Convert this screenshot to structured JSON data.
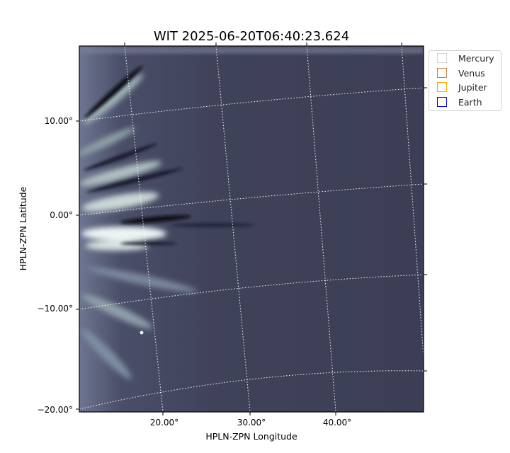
{
  "chart_data": {
    "type": "image",
    "title": "WIT 2025-06-20T06:40:23.624",
    "xlabel": "HPLN-ZPN Longitude",
    "ylabel": "HPLN-ZPN Latitude",
    "xticks": [
      "20.00°",
      "30.00°",
      "40.00°"
    ],
    "yticks": [
      "10.00°",
      "0.00°",
      "−10.00°",
      "−20.00°"
    ],
    "grid": true,
    "grid_style": "dotted white",
    "colormap": "bone",
    "legend_position": "top-right, outside plot",
    "legend": [
      {
        "name": "Mercury",
        "color": "#d3d3d3"
      },
      {
        "name": "Venus",
        "color": "#cd7f45"
      },
      {
        "name": "Jupiter",
        "color": "#ffa500"
      },
      {
        "name": "Earth",
        "color": "#0000ff"
      }
    ]
  }
}
